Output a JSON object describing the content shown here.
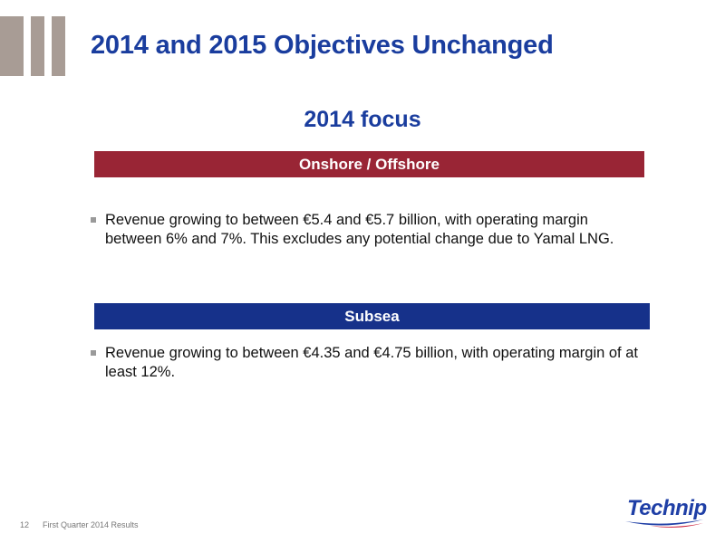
{
  "slide": {
    "title": "2014 and 2015 Objectives Unchanged",
    "section_heading": "2014 focus"
  },
  "segments": [
    {
      "band_label": "Onshore / Offshore",
      "band_color": "#992535",
      "bullet": "Revenue growing to between €5.4 and €5.7 billion, with operating margin between 6% and 7%. This excludes any potential change due to Yamal LNG."
    },
    {
      "band_label": "Subsea",
      "band_color": "#16318a",
      "bullet": "Revenue growing to between €4.35 and €4.75 billion, with operating margin of at least 12%."
    }
  ],
  "footer": {
    "page_number": "12",
    "label": "First Quarter 2014 Results"
  },
  "logo": {
    "text": "Technip",
    "color": "#1f3fa6",
    "accent_color": "#c8102e"
  },
  "colors": {
    "title": "#1a3d9e",
    "decoration": "#a89c95"
  }
}
